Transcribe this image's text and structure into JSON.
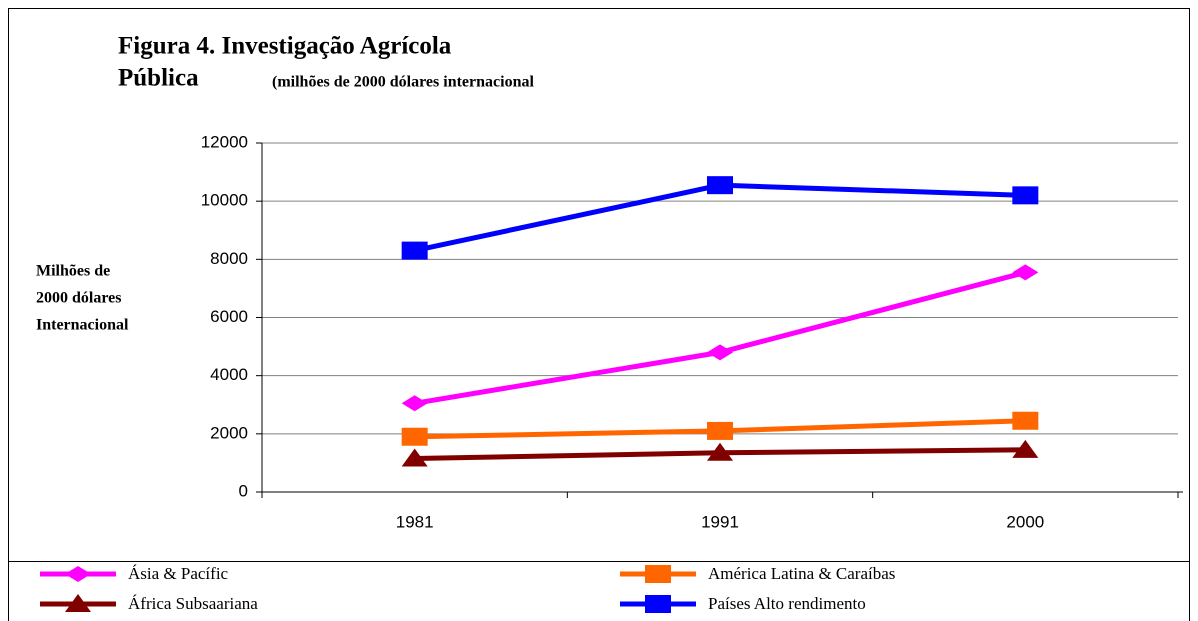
{
  "chart_data": {
    "type": "line",
    "title": [
      "Figura 4.  Investigação Agrícola",
      "Pública"
    ],
    "subtitle": "(milhões de 2000 dólares internacional",
    "y_label": [
      "Milhões de",
      "2000 dólares",
      "Internacional"
    ],
    "categories": [
      "1981",
      "1991",
      "2000"
    ],
    "series": [
      {
        "name": "Ásia & Pacífic",
        "color": "#ff00ff",
        "marker": "diamond",
        "values": [
          3050,
          4800,
          7550
        ]
      },
      {
        "name": "América Latina & Caraíbas",
        "color": "#ff6600",
        "marker": "square",
        "values": [
          1900,
          2100,
          2450
        ]
      },
      {
        "name": "África Subsaariana",
        "color": "#800000",
        "marker": "triangle",
        "values": [
          1150,
          1350,
          1450
        ]
      },
      {
        "name": "Países Alto rendimento",
        "color": "#0000ff",
        "marker": "square",
        "values": [
          8300,
          10550,
          10200
        ]
      }
    ],
    "ylim": [
      0,
      12000
    ],
    "yticks": [
      0,
      2000,
      4000,
      6000,
      8000,
      10000,
      12000
    ],
    "grid": true
  }
}
